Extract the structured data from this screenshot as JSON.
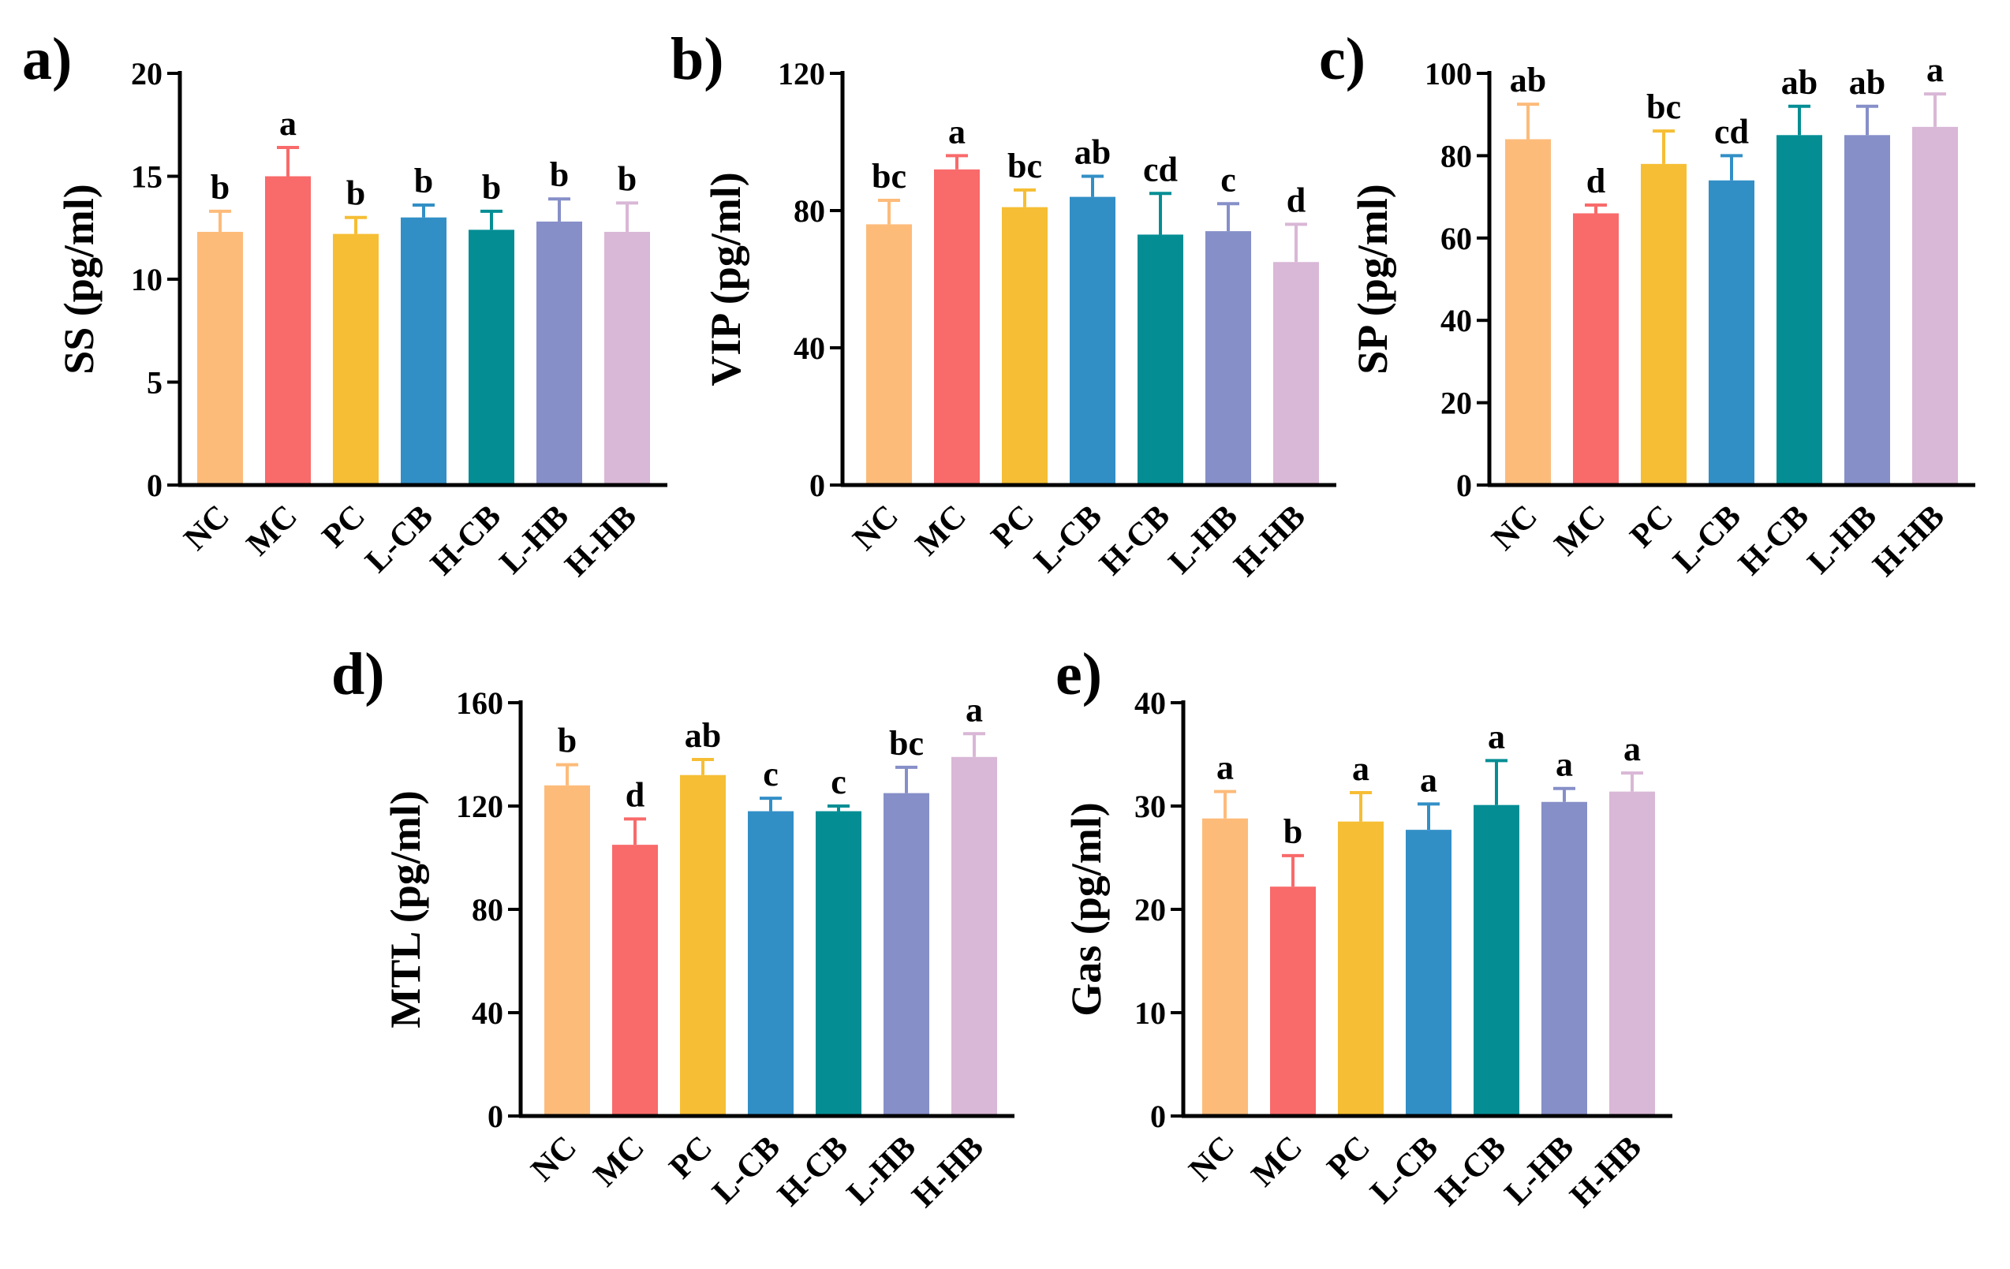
{
  "colors": [
    "#FDBB7A",
    "#F96A6A",
    "#F6BE34",
    "#328FC6",
    "#048E94",
    "#868FC8",
    "#D9B7D6"
  ],
  "chart_data": [
    {
      "type": "bar",
      "panel": "a)",
      "ylabel": "SS (pg/ml)",
      "xlabel": "",
      "categories": [
        "NC",
        "MC",
        "PC",
        "L-CB",
        "H-CB",
        "L-HB",
        "H-HB"
      ],
      "values": [
        12.3,
        15.0,
        12.2,
        13.0,
        12.4,
        12.8,
        12.3
      ],
      "errors": [
        1.0,
        1.4,
        0.8,
        0.6,
        0.9,
        1.1,
        1.4
      ],
      "significance": [
        "b",
        "a",
        "b",
        "b",
        "b",
        "b",
        "b"
      ],
      "ylim": [
        0,
        20
      ],
      "yticks": [
        "0",
        "5",
        "10",
        "15",
        "20"
      ]
    },
    {
      "type": "bar",
      "panel": "b)",
      "ylabel": "VIP (pg/ml)",
      "xlabel": "",
      "categories": [
        "NC",
        "MC",
        "PC",
        "L-CB",
        "H-CB",
        "L-HB",
        "H-HB"
      ],
      "values": [
        76,
        92,
        81,
        84,
        73,
        74,
        65
      ],
      "errors": [
        7,
        4,
        5,
        6,
        12,
        8,
        11
      ],
      "significance": [
        "bc",
        "a",
        "bc",
        "ab",
        "cd",
        "c",
        "d"
      ],
      "ylim": [
        0,
        120
      ],
      "yticks": [
        "0",
        "40",
        "80",
        "120"
      ]
    },
    {
      "type": "bar",
      "panel": "c)",
      "ylabel": "SP (pg/ml)",
      "xlabel": "",
      "categories": [
        "NC",
        "MC",
        "PC",
        "L-CB",
        "H-CB",
        "L-HB",
        "H-HB"
      ],
      "values": [
        84,
        66,
        78,
        74,
        85,
        85,
        87
      ],
      "errors": [
        8.5,
        2,
        8,
        6,
        7,
        7,
        8
      ],
      "significance": [
        "ab",
        "d",
        "bc",
        "cd",
        "ab",
        "ab",
        "a"
      ],
      "ylim": [
        0,
        100
      ],
      "yticks": [
        "0",
        "20",
        "40",
        "60",
        "80",
        "100"
      ]
    },
    {
      "type": "bar",
      "panel": "d)",
      "ylabel": "MTL (pg/ml)",
      "xlabel": "",
      "categories": [
        "NC",
        "MC",
        "PC",
        "L-CB",
        "H-CB",
        "L-HB",
        "H-HB"
      ],
      "values": [
        128,
        105,
        132,
        118,
        118,
        125,
        139
      ],
      "errors": [
        8,
        10,
        6,
        5,
        2,
        10,
        9
      ],
      "significance": [
        "b",
        "d",
        "ab",
        "c",
        "c",
        "bc",
        "a"
      ],
      "ylim": [
        0,
        160
      ],
      "yticks": [
        "0",
        "40",
        "80",
        "120",
        "160"
      ]
    },
    {
      "type": "bar",
      "panel": "e)",
      "ylabel": "Gas (pg/ml)",
      "xlabel": "",
      "categories": [
        "NC",
        "MC",
        "PC",
        "L-CB",
        "H-CB",
        "L-HB",
        "H-HB"
      ],
      "values": [
        28.8,
        22.2,
        28.5,
        27.7,
        30.1,
        30.4,
        31.4
      ],
      "errors": [
        2.6,
        3.0,
        2.8,
        2.5,
        4.3,
        1.3,
        1.8
      ],
      "significance": [
        "a",
        "b",
        "a",
        "a",
        "a",
        "a",
        "a"
      ],
      "ylim": [
        0,
        40
      ],
      "yticks": [
        "0",
        "10",
        "20",
        "30",
        "40"
      ]
    }
  ]
}
